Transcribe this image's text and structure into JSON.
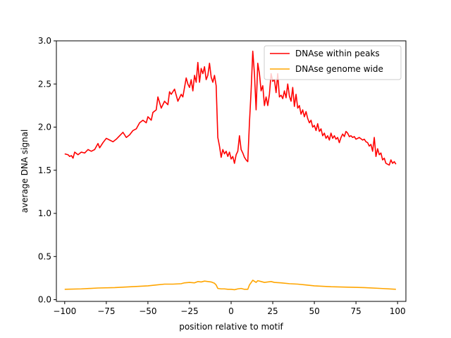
{
  "chart_data": {
    "type": "line",
    "title": "",
    "xlabel": "position relative to motif",
    "ylabel": "average DNA signal",
    "xlim": [
      -105,
      105
    ],
    "ylim": [
      -0.02,
      3.0
    ],
    "xticks": [
      -100,
      -75,
      -50,
      -25,
      0,
      25,
      50,
      75,
      100
    ],
    "yticks": [
      0.0,
      0.5,
      1.0,
      1.5,
      2.0,
      2.5,
      3.0
    ],
    "xtick_labels": [
      "−100",
      "−75",
      "−50",
      "−25",
      "0",
      "25",
      "50",
      "75",
      "100"
    ],
    "ytick_labels": [
      "0.0",
      "0.5",
      "1.0",
      "1.5",
      "2.0",
      "2.5",
      "3.0"
    ],
    "grid": false,
    "legend_position": "top-right",
    "series": [
      {
        "name": "DNAse within peaks",
        "color": "#ff0000",
        "points": [
          [
            -100,
            1.69
          ],
          [
            -98,
            1.68
          ],
          [
            -97,
            1.66
          ],
          [
            -96,
            1.67
          ],
          [
            -95,
            1.64
          ],
          [
            -94,
            1.71
          ],
          [
            -92,
            1.68
          ],
          [
            -90,
            1.71
          ],
          [
            -88,
            1.7
          ],
          [
            -86,
            1.74
          ],
          [
            -84,
            1.72
          ],
          [
            -82,
            1.74
          ],
          [
            -80,
            1.81
          ],
          [
            -79,
            1.76
          ],
          [
            -77,
            1.82
          ],
          [
            -75,
            1.87
          ],
          [
            -73,
            1.85
          ],
          [
            -71,
            1.83
          ],
          [
            -69,
            1.86
          ],
          [
            -67,
            1.9
          ],
          [
            -65,
            1.94
          ],
          [
            -63,
            1.88
          ],
          [
            -61,
            1.91
          ],
          [
            -59,
            1.96
          ],
          [
            -57,
            1.98
          ],
          [
            -55,
            2.05
          ],
          [
            -53,
            2.08
          ],
          [
            -51,
            2.05
          ],
          [
            -50,
            2.12
          ],
          [
            -48,
            2.08
          ],
          [
            -47,
            2.17
          ],
          [
            -45,
            2.2
          ],
          [
            -44,
            2.35
          ],
          [
            -42,
            2.22
          ],
          [
            -40,
            2.3
          ],
          [
            -38,
            2.26
          ],
          [
            -37,
            2.41
          ],
          [
            -36,
            2.38
          ],
          [
            -34,
            2.44
          ],
          [
            -32,
            2.3
          ],
          [
            -30,
            2.38
          ],
          [
            -29,
            2.35
          ],
          [
            -27,
            2.57
          ],
          [
            -26,
            2.5
          ],
          [
            -25,
            2.46
          ],
          [
            -24,
            2.55
          ],
          [
            -23,
            2.42
          ],
          [
            -22,
            2.6
          ],
          [
            -21,
            2.52
          ],
          [
            -20,
            2.75
          ],
          [
            -19,
            2.52
          ],
          [
            -18,
            2.68
          ],
          [
            -17,
            2.62
          ],
          [
            -16,
            2.7
          ],
          [
            -15,
            2.55
          ],
          [
            -14,
            2.6
          ],
          [
            -13,
            2.74
          ],
          [
            -12,
            2.58
          ],
          [
            -11,
            2.52
          ],
          [
            -10,
            2.6
          ],
          [
            -9,
            2.48
          ],
          [
            -8,
            1.88
          ],
          [
            -7,
            1.78
          ],
          [
            -6,
            1.65
          ],
          [
            -5,
            1.74
          ],
          [
            -4,
            1.69
          ],
          [
            -3,
            1.72
          ],
          [
            -2,
            1.66
          ],
          [
            -1,
            1.71
          ],
          [
            0,
            1.63
          ],
          [
            1,
            1.66
          ],
          [
            2,
            1.58
          ],
          [
            3,
            1.68
          ],
          [
            4,
            1.72
          ],
          [
            5,
            1.9
          ],
          [
            6,
            1.74
          ],
          [
            7,
            1.7
          ],
          [
            8,
            1.65
          ],
          [
            9,
            1.62
          ],
          [
            10,
            1.6
          ],
          [
            11,
            2.05
          ],
          [
            12,
            2.42
          ],
          [
            13,
            2.88
          ],
          [
            14,
            2.62
          ],
          [
            15,
            2.2
          ],
          [
            16,
            2.74
          ],
          [
            17,
            2.62
          ],
          [
            18,
            2.42
          ],
          [
            19,
            2.48
          ],
          [
            20,
            2.25
          ],
          [
            21,
            2.35
          ],
          [
            22,
            2.25
          ],
          [
            23,
            2.38
          ],
          [
            24,
            2.62
          ],
          [
            25,
            2.53
          ],
          [
            26,
            2.55
          ],
          [
            27,
            2.4
          ],
          [
            28,
            2.62
          ],
          [
            29,
            2.35
          ],
          [
            30,
            2.37
          ],
          [
            31,
            2.33
          ],
          [
            32,
            2.42
          ],
          [
            33,
            2.34
          ],
          [
            34,
            2.5
          ],
          [
            35,
            2.36
          ],
          [
            36,
            2.3
          ],
          [
            37,
            2.46
          ],
          [
            38,
            2.24
          ],
          [
            39,
            2.38
          ],
          [
            40,
            2.22
          ],
          [
            41,
            2.25
          ],
          [
            42,
            2.15
          ],
          [
            43,
            2.2
          ],
          [
            44,
            2.12
          ],
          [
            45,
            2.18
          ],
          [
            46,
            2.1
          ],
          [
            47,
            2.05
          ],
          [
            48,
            2.08
          ],
          [
            49,
            2.0
          ],
          [
            50,
            2.02
          ],
          [
            51,
            1.96
          ],
          [
            52,
            2.04
          ],
          [
            53,
            1.95
          ],
          [
            54,
            1.98
          ],
          [
            55,
            1.9
          ],
          [
            56,
            1.93
          ],
          [
            57,
            1.87
          ],
          [
            58,
            1.9
          ],
          [
            59,
            1.85
          ],
          [
            60,
            1.93
          ],
          [
            61,
            1.87
          ],
          [
            62,
            1.9
          ],
          [
            63,
            1.86
          ],
          [
            64,
            1.88
          ],
          [
            65,
            1.82
          ],
          [
            66,
            1.88
          ],
          [
            67,
            1.92
          ],
          [
            68,
            1.89
          ],
          [
            69,
            1.95
          ],
          [
            70,
            1.93
          ],
          [
            71,
            1.89
          ],
          [
            72,
            1.9
          ],
          [
            73,
            1.88
          ],
          [
            74,
            1.89
          ],
          [
            75,
            1.86
          ],
          [
            77,
            1.88
          ],
          [
            79,
            1.85
          ],
          [
            80,
            1.86
          ],
          [
            81,
            1.83
          ],
          [
            82,
            1.82
          ],
          [
            83,
            1.78
          ],
          [
            84,
            1.8
          ],
          [
            85,
            1.72
          ],
          [
            86,
            1.88
          ],
          [
            87,
            1.66
          ],
          [
            88,
            1.75
          ],
          [
            89,
            1.68
          ],
          [
            90,
            1.7
          ],
          [
            91,
            1.62
          ],
          [
            92,
            1.64
          ],
          [
            93,
            1.58
          ],
          [
            94,
            1.57
          ],
          [
            95,
            1.56
          ],
          [
            96,
            1.62
          ],
          [
            97,
            1.58
          ],
          [
            98,
            1.6
          ],
          [
            99,
            1.57
          ]
        ]
      },
      {
        "name": "DNAse genome wide",
        "color": "#ffa500",
        "points": [
          [
            -100,
            0.12
          ],
          [
            -90,
            0.125
          ],
          [
            -80,
            0.135
          ],
          [
            -70,
            0.14
          ],
          [
            -60,
            0.15
          ],
          [
            -50,
            0.16
          ],
          [
            -45,
            0.17
          ],
          [
            -40,
            0.18
          ],
          [
            -35,
            0.18
          ],
          [
            -30,
            0.185
          ],
          [
            -28,
            0.195
          ],
          [
            -25,
            0.2
          ],
          [
            -22,
            0.195
          ],
          [
            -20,
            0.21
          ],
          [
            -18,
            0.205
          ],
          [
            -16,
            0.215
          ],
          [
            -14,
            0.21
          ],
          [
            -12,
            0.205
          ],
          [
            -10,
            0.19
          ],
          [
            -9,
            0.17
          ],
          [
            -8,
            0.13
          ],
          [
            -6,
            0.125
          ],
          [
            -4,
            0.125
          ],
          [
            -2,
            0.12
          ],
          [
            0,
            0.12
          ],
          [
            2,
            0.115
          ],
          [
            4,
            0.125
          ],
          [
            6,
            0.13
          ],
          [
            8,
            0.12
          ],
          [
            10,
            0.12
          ],
          [
            11,
            0.17
          ],
          [
            13,
            0.225
          ],
          [
            15,
            0.2
          ],
          [
            16,
            0.22
          ],
          [
            18,
            0.21
          ],
          [
            20,
            0.2
          ],
          [
            22,
            0.205
          ],
          [
            24,
            0.21
          ],
          [
            26,
            0.2
          ],
          [
            30,
            0.195
          ],
          [
            35,
            0.185
          ],
          [
            40,
            0.18
          ],
          [
            45,
            0.17
          ],
          [
            50,
            0.16
          ],
          [
            60,
            0.15
          ],
          [
            70,
            0.145
          ],
          [
            80,
            0.14
          ],
          [
            90,
            0.13
          ],
          [
            99,
            0.12
          ]
        ]
      }
    ]
  }
}
